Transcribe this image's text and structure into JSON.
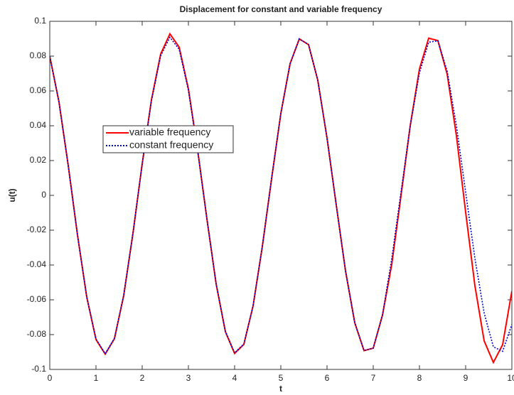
{
  "chart_data": {
    "type": "line",
    "title": "Displacement for constant and variable frequency",
    "xlabel": "t",
    "ylabel": "u(t)",
    "x": [
      0,
      0.2,
      0.4,
      0.6,
      0.8,
      1,
      1.2,
      1.4,
      1.6,
      1.8,
      2,
      2.2,
      2.4,
      2.6,
      2.8,
      3,
      3.2,
      3.4,
      3.6,
      3.8,
      4,
      4.2,
      4.4,
      4.6,
      4.8,
      5,
      5.2,
      5.4,
      5.6,
      5.8,
      6,
      6.2,
      6.4,
      6.6,
      6.8,
      7,
      7.2,
      7.4,
      7.6,
      7.8,
      8,
      8.2,
      8.4,
      8.6,
      8.8,
      9,
      9.2,
      9.4,
      9.6,
      9.8,
      10
    ],
    "series": [
      {
        "name": "variable frequency",
        "color": "#ff0000",
        "dash": false,
        "values": [
          0.0799,
          0.0536,
          0.0171,
          -0.0228,
          -0.0584,
          -0.0828,
          -0.0912,
          -0.0823,
          -0.0576,
          -0.0219,
          0.0181,
          0.0549,
          0.0812,
          0.0928,
          0.0852,
          0.0612,
          0.026,
          -0.0134,
          -0.0509,
          -0.0783,
          -0.0908,
          -0.0856,
          -0.0635,
          -0.0294,
          0.0095,
          0.047,
          0.0756,
          0.0899,
          0.0866,
          0.0661,
          0.0329,
          -0.0056,
          -0.0434,
          -0.0732,
          -0.0892,
          -0.0878,
          -0.0688,
          -0.0398,
          -0.0004,
          0.04,
          0.0726,
          0.0903,
          0.0889,
          0.0696,
          0.0343,
          -0.0097,
          -0.0519,
          -0.0836,
          -0.096,
          -0.0858,
          -0.055
        ]
      },
      {
        "name": "constant frequency",
        "color": "#0000cc",
        "dash": true,
        "values": [
          0.0799,
          0.0536,
          0.0171,
          -0.0227,
          -0.0582,
          -0.0825,
          -0.091,
          -0.0821,
          -0.0574,
          -0.0218,
          0.0179,
          0.0542,
          0.0802,
          0.0908,
          0.084,
          0.0604,
          0.0257,
          -0.0133,
          -0.0506,
          -0.078,
          -0.0905,
          -0.0854,
          -0.0634,
          -0.0294,
          0.0095,
          0.047,
          0.0755,
          0.0899,
          0.0867,
          0.0662,
          0.033,
          -0.0056,
          -0.0434,
          -0.0731,
          -0.0891,
          -0.0878,
          -0.0688,
          -0.0365,
          0.0017,
          0.0397,
          0.0704,
          0.088,
          0.0888,
          0.0714,
          0.04,
          0.0018,
          -0.0362,
          -0.0676,
          -0.087,
          -0.0896,
          -0.0742
        ]
      }
    ],
    "xlim": [
      0,
      10
    ],
    "xticks": [
      0,
      1,
      2,
      3,
      4,
      5,
      6,
      7,
      8,
      9,
      10
    ],
    "ylim": [
      -0.1,
      0.1
    ],
    "yticks": [
      -0.1,
      -0.08,
      -0.06,
      -0.04,
      -0.02,
      0,
      0.02,
      0.04,
      0.06,
      0.08,
      0.1
    ],
    "grid": false
  }
}
